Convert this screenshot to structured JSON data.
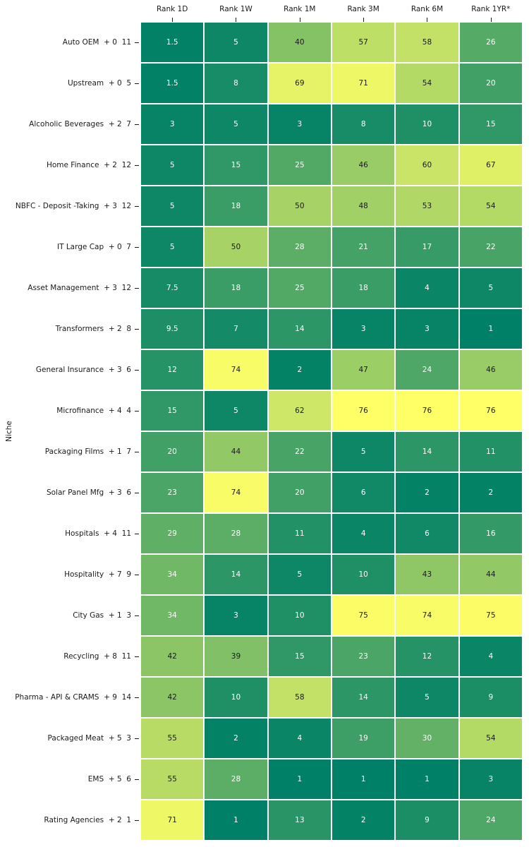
{
  "chart_data": {
    "type": "heatmap",
    "title": "",
    "ylabel": "Niche",
    "xlabel": "",
    "columns": [
      "Rank 1D",
      "Rank 1W",
      "Rank 1M",
      "Rank 3M",
      "Rank 6M",
      "Rank 1YR*"
    ],
    "rows": [
      "Auto OEM  + 0  11",
      "Upstream  + 0  5",
      "Alcoholic Beverages  + 2  7",
      "Home Finance  + 2  12",
      "NBFC - Deposit -Taking  + 3  12",
      "IT Large Cap  + 0  7",
      "Asset Management  + 3  12",
      "Transformers  + 2  8",
      "General Insurance  + 3  6",
      "Microfinance  + 4  4",
      "Packaging Films  + 1  7",
      "Solar Panel Mfg  + 3  6",
      "Hospitals  + 4  11",
      "Hospitality  + 7  9",
      "City Gas  + 1  3",
      "Recycling  + 8  11",
      "Pharma - API & CRAMS  + 9  14",
      "Packaged Meat  + 5  3",
      "EMS  + 5  6",
      "Rating Agencies  + 2  1"
    ],
    "values": [
      [
        1.5,
        5,
        40,
        57,
        58,
        26
      ],
      [
        1.5,
        8,
        69,
        71,
        54,
        20
      ],
      [
        3,
        5,
        3,
        8,
        10,
        15
      ],
      [
        5,
        15,
        25,
        46,
        60,
        67
      ],
      [
        5,
        18,
        50,
        48,
        53,
        54
      ],
      [
        5,
        50,
        28,
        21,
        17,
        22
      ],
      [
        7.5,
        18,
        25,
        18,
        4,
        5
      ],
      [
        9.5,
        7,
        14,
        3,
        3,
        1
      ],
      [
        12,
        74,
        2,
        47,
        24,
        46
      ],
      [
        15,
        5,
        62,
        76,
        76,
        76
      ],
      [
        20,
        44,
        22,
        5,
        14,
        11
      ],
      [
        23,
        74,
        20,
        6,
        2,
        2
      ],
      [
        29,
        28,
        11,
        4,
        6,
        16
      ],
      [
        34,
        14,
        5,
        10,
        43,
        44
      ],
      [
        34,
        3,
        10,
        75,
        74,
        75
      ],
      [
        42,
        39,
        15,
        23,
        12,
        4
      ],
      [
        42,
        10,
        58,
        14,
        5,
        9
      ],
      [
        55,
        2,
        4,
        19,
        30,
        54
      ],
      [
        55,
        28,
        1,
        1,
        1,
        3
      ],
      [
        71,
        1,
        13,
        2,
        9,
        24
      ]
    ],
    "vmin": 1,
    "vmax": 76,
    "colormap": "summer",
    "colors": {
      "colormap_start": "#008066",
      "colormap_end": "#ffff66",
      "gridline": "#ffffff",
      "cell_text_light": "#ffffff",
      "cell_text_dark": "#1a1a1a",
      "axis_text": "#1a1a1a",
      "background": "#ffffff"
    },
    "legend": "none",
    "grid_on": true
  }
}
